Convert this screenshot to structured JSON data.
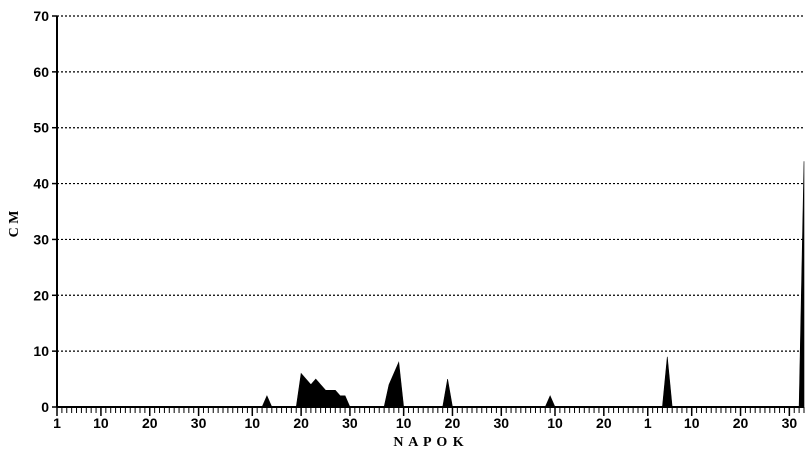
{
  "chart_data": {
    "type": "area",
    "title": "",
    "xlabel": "N A P O K",
    "ylabel": "C M",
    "ylim": [
      0,
      70
    ],
    "yticks": [
      0,
      10,
      20,
      30,
      40,
      50,
      60,
      70
    ],
    "grid": "horizontal dotted",
    "x_range_days": [
      1,
      154
    ],
    "x_tick_labels": [
      {
        "day": 1,
        "label": "1"
      },
      {
        "day": 10,
        "label": "10"
      },
      {
        "day": 20,
        "label": "20"
      },
      {
        "day": 30,
        "label": "30"
      },
      {
        "day": 41,
        "label": "10"
      },
      {
        "day": 51,
        "label": "20"
      },
      {
        "day": 61,
        "label": "30"
      },
      {
        "day": 72,
        "label": "10"
      },
      {
        "day": 82,
        "label": "20"
      },
      {
        "day": 92,
        "label": "30"
      },
      {
        "day": 103,
        "label": "10"
      },
      {
        "day": 113,
        "label": "20"
      },
      {
        "day": 122,
        "label": "1"
      },
      {
        "day": 131,
        "label": "10"
      },
      {
        "day": 141,
        "label": "20"
      },
      {
        "day": 151,
        "label": "30"
      }
    ],
    "series": [
      {
        "fill": "#000000",
        "points": [
          {
            "x": 1,
            "y": 0
          },
          {
            "x": 43,
            "y": 0
          },
          {
            "x": 44,
            "y": 2
          },
          {
            "x": 45,
            "y": 0
          },
          {
            "x": 50,
            "y": 0
          },
          {
            "x": 51,
            "y": 6
          },
          {
            "x": 52,
            "y": 5
          },
          {
            "x": 53,
            "y": 4
          },
          {
            "x": 54,
            "y": 5
          },
          {
            "x": 55,
            "y": 4
          },
          {
            "x": 56,
            "y": 3
          },
          {
            "x": 57,
            "y": 3
          },
          {
            "x": 58,
            "y": 3
          },
          {
            "x": 59,
            "y": 2
          },
          {
            "x": 60,
            "y": 2
          },
          {
            "x": 61,
            "y": 0
          },
          {
            "x": 68,
            "y": 0
          },
          {
            "x": 69,
            "y": 4
          },
          {
            "x": 70,
            "y": 6
          },
          {
            "x": 71,
            "y": 8
          },
          {
            "x": 72,
            "y": 0
          },
          {
            "x": 80,
            "y": 0
          },
          {
            "x": 81,
            "y": 5
          },
          {
            "x": 82,
            "y": 0
          },
          {
            "x": 101,
            "y": 0
          },
          {
            "x": 102,
            "y": 2
          },
          {
            "x": 103,
            "y": 0
          },
          {
            "x": 125,
            "y": 0
          },
          {
            "x": 126,
            "y": 9
          },
          {
            "x": 127,
            "y": 0
          },
          {
            "x": 153,
            "y": 0
          },
          {
            "x": 154,
            "y": 44
          }
        ]
      }
    ]
  }
}
